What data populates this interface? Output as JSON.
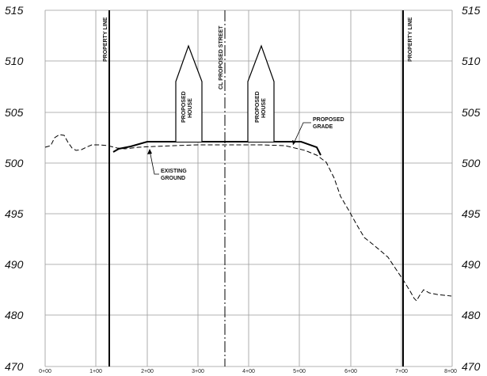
{
  "elevation_labels": [
    "515",
    "510",
    "505",
    "500",
    "495",
    "490",
    "480",
    "470"
  ],
  "station_labels": [
    "0+00",
    "1+00",
    "2+00",
    "3+00",
    "4+00",
    "5+00",
    "6+00",
    "7+00",
    "8+00"
  ],
  "property_line_label": "PROPERTY LINE",
  "centerline_label": "CL PROPOSED STREET",
  "house_label_line1": "PROPOSED",
  "house_label_line2": "HOUSE",
  "proposed_grade_line1": "PROPOSED",
  "proposed_grade_line2": "GRADE",
  "existing_ground_line1": "EXISTING",
  "existing_ground_line2": "GROUND"
}
